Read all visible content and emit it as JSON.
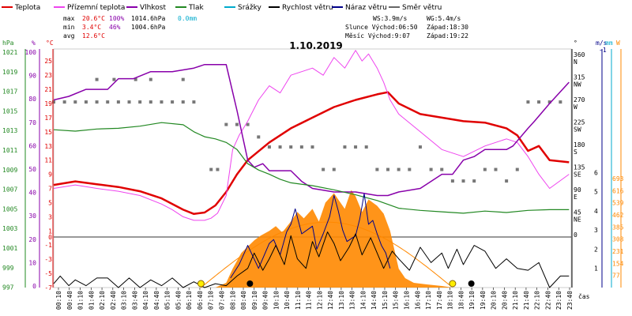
{
  "chart_data": {
    "type": "line",
    "title": "1.10.2019",
    "xlabel": "čas",
    "legend": [
      {
        "name": "Teplota",
        "color": "#e00000"
      },
      {
        "name": "Přízemní teplota",
        "color": "#ee44ee"
      },
      {
        "name": "Vlhkost",
        "color": "#8800aa"
      },
      {
        "name": "Tlak",
        "color": "#228822"
      },
      {
        "name": "Srážky",
        "color": "#00aacc"
      },
      {
        "name": "Rychlost větru",
        "color": "#000000"
      },
      {
        "name": "Náraz větru",
        "color": "#000088"
      },
      {
        "name": "Směr větru",
        "color": "#666666"
      }
    ],
    "stats": {
      "max": {
        "label": "max",
        "temp": "20.6°C",
        "hum": "100%",
        "press": "1014.6hPa",
        "rain": "0.0mm"
      },
      "min": {
        "label": "min",
        "temp": "3.4°C",
        "hum": "46%",
        "press": "1004.6hPa"
      },
      "avg": {
        "label": "avg",
        "temp": "12.6°C"
      }
    },
    "info": {
      "ws": "WS:3.9m/s",
      "wg": "WG:5.4m/s",
      "sun": "Slunce Východ:06:50",
      "sunset": "Západ:18:30",
      "moon": "Měsíc Východ:9:07",
      "moonset": "Západ:19:22"
    },
    "axes": {
      "hpa_unit": "hPa",
      "pct_unit": "%",
      "deg_unit": "°C",
      "dir_unit": "°",
      "ms_unit": "m/s",
      "mm_unit": "mm",
      "w_unit": "W",
      "hpa_ticks": [
        "1021",
        "1019",
        "1017",
        "1015",
        "1013",
        "1011",
        "1009",
        "1007",
        "1005",
        "1003",
        "1001",
        "999",
        "997"
      ],
      "pct_ticks": [
        "100",
        "90",
        "80",
        "70",
        "60",
        "50",
        "40",
        "30",
        "20",
        "10",
        "0"
      ],
      "deg_ticks": [
        "25",
        "23",
        "21",
        "19",
        "17",
        "15",
        "13",
        "11",
        "9",
        "7",
        "5",
        "3",
        "1",
        "-1",
        "-3",
        "-5",
        "-7"
      ],
      "deg_zero": "0",
      "dir_ticks": [
        {
          "deg": "360",
          "lab": "N"
        },
        {
          "deg": "315",
          "lab": "NW"
        },
        {
          "deg": "270",
          "lab": "W"
        },
        {
          "deg": "225",
          "lab": "SW"
        },
        {
          "deg": "180",
          "lab": "S"
        },
        {
          "deg": "135",
          "lab": "SE"
        },
        {
          "deg": "90",
          "lab": "E"
        },
        {
          "deg": "45",
          "lab": "NE"
        },
        {
          "deg": "0",
          "lab": ""
        }
      ],
      "ms_ticks": [
        "6",
        "5",
        "4",
        "3",
        "2",
        "1"
      ],
      "ms_top": "-1",
      "w_ticks": [
        "693",
        "616",
        "539",
        "462",
        "385",
        "308",
        "231",
        "154",
        "77"
      ],
      "time_ticks": [
        "00:10",
        "00:40",
        "01:10",
        "01:40",
        "02:10",
        "02:40",
        "03:10",
        "03:40",
        "04:10",
        "04:40",
        "05:10",
        "05:40",
        "06:10",
        "06:40",
        "07:10",
        "07:40",
        "08:10",
        "08:40",
        "09:10",
        "09:40",
        "10:10",
        "10:40",
        "11:10",
        "11:40",
        "12:10",
        "12:40",
        "13:10",
        "13:40",
        "14:10",
        "14:40",
        "15:10",
        "15:40",
        "16:10",
        "16:40",
        "17:10",
        "17:40",
        "18:10",
        "18:40",
        "19:10",
        "19:40",
        "20:10",
        "20:40",
        "21:10",
        "21:40",
        "22:10",
        "22:40",
        "23:10",
        "23:40"
      ]
    },
    "x_hours": [
      0,
      1,
      2,
      3,
      4,
      5,
      6,
      6.5,
      7,
      7.5,
      8,
      8.5,
      9,
      10,
      11,
      12,
      13,
      14,
      15,
      15.5,
      16,
      17,
      18,
      19,
      20,
      21,
      22,
      22.5,
      23,
      23.9
    ],
    "series": [
      {
        "name": "Teplota",
        "color": "#e00000",
        "width": 2.5,
        "x": [
          0,
          1,
          2,
          3,
          4,
          5,
          6,
          6.5,
          7,
          7.5,
          8,
          8.5,
          9,
          10,
          11,
          12,
          13,
          14,
          15,
          15.5,
          16,
          17,
          18,
          19,
          20,
          21,
          21.5,
          22,
          22.5,
          23,
          23.9
        ],
        "y": [
          7.5,
          8.0,
          7.6,
          7.2,
          6.6,
          5.6,
          4.0,
          3.4,
          3.6,
          4.6,
          6.5,
          9.0,
          11.0,
          13.5,
          15.5,
          17.0,
          18.5,
          19.5,
          20.3,
          20.6,
          19.0,
          17.5,
          17.0,
          16.5,
          16.3,
          15.5,
          14.5,
          12.3,
          13.0,
          11.0,
          10.7
        ]
      },
      {
        "name": "Přízemní teplota",
        "color": "#ee44ee",
        "width": 1,
        "x": [
          0,
          1,
          2,
          3,
          4,
          5,
          5.5,
          6,
          6.5,
          7,
          7.3,
          7.6,
          8,
          8.3,
          8.6,
          9,
          9.5,
          10,
          10.5,
          11,
          12,
          12.5,
          13,
          13.5,
          14,
          14.3,
          14.6,
          15,
          15.3,
          15.6,
          16,
          17,
          18,
          19,
          20,
          21,
          21.5,
          22,
          22.5,
          23,
          23.9
        ],
        "y": [
          7.0,
          7.5,
          7.0,
          6.6,
          6.0,
          4.8,
          4.0,
          3.0,
          2.5,
          2.5,
          2.8,
          3.5,
          6.0,
          12.5,
          14.5,
          16.5,
          19.5,
          21.5,
          20.5,
          23.0,
          24.0,
          23.0,
          25.5,
          24.0,
          26.5,
          25.0,
          26.0,
          24.0,
          22.0,
          19.5,
          17.5,
          15.0,
          12.5,
          11.5,
          13.0,
          14.0,
          13.5,
          11.5,
          9.0,
          7.0,
          9.0
        ]
      },
      {
        "name": "Vlhkost",
        "color": "#8800aa",
        "width": 1.5,
        "x": [
          0,
          0.7,
          1.5,
          2.5,
          3,
          3.7,
          4.5,
          5.5,
          6.5,
          7,
          7.5,
          8,
          8.5,
          9,
          9.3,
          9.7,
          10,
          11,
          11.5,
          12,
          13,
          14,
          15,
          15.5,
          16,
          17,
          18,
          18.5,
          19,
          19.5,
          20,
          21,
          21.3,
          22,
          22.3,
          23,
          23.9
        ],
        "y": [
          19.5,
          20.0,
          21.0,
          21.0,
          22.5,
          22.5,
          23.5,
          23.5,
          24.0,
          24.5,
          24.5,
          24.5,
          18.0,
          11.0,
          10.0,
          10.5,
          9.5,
          9.5,
          8.0,
          7.0,
          6.5,
          6.5,
          6.0,
          6.0,
          6.5,
          7.0,
          9.0,
          9.0,
          11.0,
          11.5,
          12.5,
          12.5,
          13.0,
          15.5,
          16.5,
          19.0,
          22.0
        ]
      },
      {
        "name": "Tlak",
        "color": "#228822",
        "width": 1.2,
        "x": [
          0,
          1,
          2,
          3,
          4,
          5,
          6,
          6.5,
          7,
          7.5,
          8,
          8.5,
          9,
          9.5,
          10,
          10.5,
          11,
          12,
          13,
          14,
          15,
          16,
          17,
          18,
          19,
          20,
          21,
          22,
          23,
          23.9
        ],
        "y": [
          15.3,
          15.1,
          15.4,
          15.5,
          15.8,
          16.3,
          16.0,
          15.0,
          14.3,
          14.0,
          13.5,
          12.5,
          10.5,
          9.6,
          9.0,
          8.3,
          7.8,
          7.4,
          6.8,
          6.1,
          5.3,
          4.2,
          3.9,
          3.7,
          3.5,
          3.8,
          3.6,
          3.9,
          4.0,
          4.0
        ]
      },
      {
        "name": "Náraz větru",
        "color": "#000088",
        "width": 1,
        "x": [
          8.2,
          8.6,
          9,
          9.5,
          10,
          10.2,
          10.5,
          10.8,
          11,
          11.2,
          11.5,
          12,
          12.2,
          12.5,
          12.8,
          13,
          13.2,
          13.4,
          13.6,
          14,
          14.2,
          14.4,
          14.6,
          14.8,
          15,
          15.2,
          15.4,
          15.6
        ],
        "y": [
          0.5,
          1.2,
          2.2,
          1.0,
          2.3,
          2.5,
          1.7,
          2.9,
          3.3,
          4.1,
          2.8,
          3.2,
          2.0,
          2.8,
          3.7,
          4.8,
          4.0,
          3.0,
          2.4,
          2.7,
          3.6,
          4.9,
          3.3,
          3.5,
          2.8,
          2.2,
          1.8,
          1.0
        ]
      },
      {
        "name": "Rychlost větru",
        "color": "#000000",
        "width": 1,
        "x": [
          0,
          0.3,
          0.7,
          1,
          1.5,
          2,
          2.5,
          3,
          3.5,
          4,
          4.5,
          5,
          5.5,
          6,
          6.5,
          7,
          7.5,
          8,
          8.5,
          9,
          9.3,
          9.7,
          10,
          10.3,
          10.7,
          11,
          11.3,
          11.7,
          12,
          12.3,
          12.7,
          13,
          13.3,
          13.7,
          14,
          14.3,
          14.7,
          15,
          15.3,
          15.7,
          16,
          16.5,
          17,
          17.5,
          18,
          18.3,
          18.7,
          19,
          19.5,
          20,
          20.5,
          21,
          21.5,
          22,
          22.5,
          23,
          23.5,
          23.9
        ],
        "y": [
          0.2,
          0.6,
          0.1,
          0.4,
          0.1,
          0.5,
          0.5,
          0.0,
          0.5,
          0.0,
          0.4,
          0.1,
          0.5,
          0.0,
          0.3,
          0.0,
          0.2,
          0.1,
          0.6,
          1.0,
          1.8,
          0.9,
          1.5,
          2.2,
          1.2,
          2.7,
          1.5,
          1.0,
          2.4,
          1.6,
          2.9,
          2.3,
          1.4,
          2.1,
          2.8,
          1.7,
          2.6,
          1.8,
          1.0,
          1.9,
          1.5,
          0.9,
          2.1,
          1.3,
          1.8,
          1.0,
          2.0,
          1.2,
          2.2,
          1.9,
          1.0,
          1.5,
          1.0,
          0.9,
          1.3,
          0.0,
          0.6,
          0.6
        ]
      }
    ],
    "wind_direction_points": [
      [
        0,
        270
      ],
      [
        0.5,
        270
      ],
      [
        1,
        270
      ],
      [
        1.5,
        270
      ],
      [
        2,
        270
      ],
      [
        2.5,
        270
      ],
      [
        3,
        270
      ],
      [
        3.5,
        270
      ],
      [
        4,
        270
      ],
      [
        4.5,
        270
      ],
      [
        5,
        270
      ],
      [
        5.5,
        270
      ],
      [
        6,
        270
      ],
      [
        6.5,
        270
      ],
      [
        2.0,
        315
      ],
      [
        2.8,
        315
      ],
      [
        3.8,
        315
      ],
      [
        4.5,
        315
      ],
      [
        6.0,
        315
      ],
      [
        7.3,
        135
      ],
      [
        7.6,
        135
      ],
      [
        8.0,
        225
      ],
      [
        8.5,
        225
      ],
      [
        9.0,
        225
      ],
      [
        9.5,
        200
      ],
      [
        10.0,
        180
      ],
      [
        10.5,
        180
      ],
      [
        11,
        180
      ],
      [
        11.5,
        180
      ],
      [
        12,
        180
      ],
      [
        12.5,
        135
      ],
      [
        13,
        135
      ],
      [
        13.5,
        180
      ],
      [
        14,
        180
      ],
      [
        14.5,
        180
      ],
      [
        15,
        135
      ],
      [
        15.5,
        135
      ],
      [
        16,
        135
      ],
      [
        16.5,
        135
      ],
      [
        17,
        180
      ],
      [
        17.5,
        135
      ],
      [
        18,
        135
      ],
      [
        18.5,
        112
      ],
      [
        19,
        112
      ],
      [
        19.5,
        112
      ],
      [
        20,
        135
      ],
      [
        20.5,
        135
      ],
      [
        21,
        112
      ],
      [
        21.5,
        135
      ],
      [
        22,
        270
      ],
      [
        22.5,
        270
      ],
      [
        23,
        270
      ],
      [
        23.5,
        270
      ]
    ],
    "solar_shape": [
      [
        6.9,
        0
      ],
      [
        7.5,
        0
      ],
      [
        8.0,
        30
      ],
      [
        8.3,
        120
      ],
      [
        8.7,
        220
      ],
      [
        9.0,
        260
      ],
      [
        9.3,
        300
      ],
      [
        9.6,
        330
      ],
      [
        10.0,
        360
      ],
      [
        10.3,
        390
      ],
      [
        10.6,
        350
      ],
      [
        11.0,
        420
      ],
      [
        11.3,
        480
      ],
      [
        11.6,
        440
      ],
      [
        12.0,
        500
      ],
      [
        12.3,
        420
      ],
      [
        12.6,
        540
      ],
      [
        13.0,
        600
      ],
      [
        13.2,
        560
      ],
      [
        13.5,
        500
      ],
      [
        13.8,
        620
      ],
      [
        14.0,
        580
      ],
      [
        14.3,
        480
      ],
      [
        14.6,
        560
      ],
      [
        15.0,
        520
      ],
      [
        15.3,
        470
      ],
      [
        15.6,
        360
      ],
      [
        16.0,
        120
      ],
      [
        16.3,
        60
      ],
      [
        16.7,
        30
      ],
      [
        17.3,
        20
      ],
      [
        18.0,
        10
      ],
      [
        18.5,
        0
      ]
    ],
    "solar_theoretical": {
      "sunrise": 6.83,
      "sunset": 18.5,
      "peak": 693,
      "peak_hour": 12.7
    },
    "markers": {
      "sunrise_hour": 6.83,
      "sunset_hour": 18.5,
      "moonrise_hour": 9.1,
      "moonset_hour": 19.37
    }
  }
}
